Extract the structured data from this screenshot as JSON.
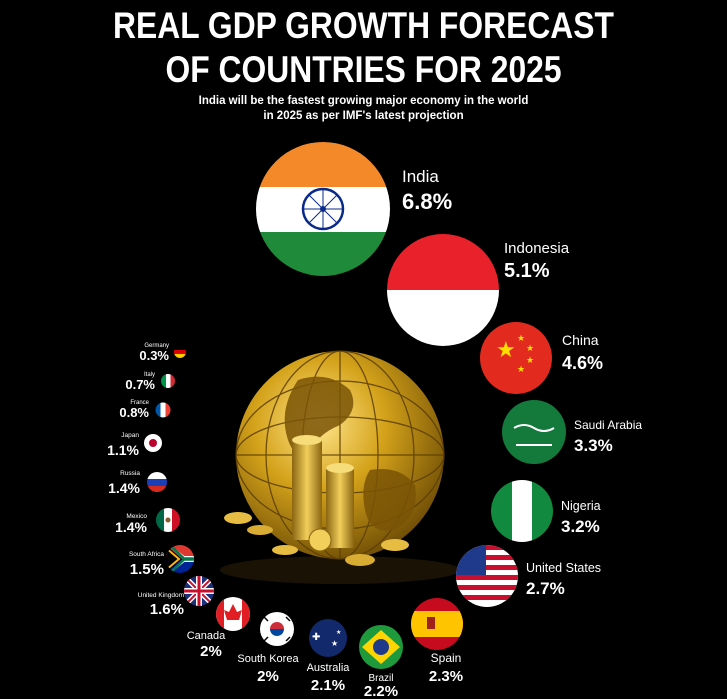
{
  "header": {
    "title_line1": "REAL GDP GROWTH FORECAST",
    "title_line2": "OF COUNTRIES FOR 2025",
    "subtitle_line1": "India will be the fastest growing major economy in the world",
    "subtitle_line2": "in 2025 as per IMF's latest projection"
  },
  "chart_data": {
    "type": "bubble",
    "title": "REAL GDP GROWTH FORECAST OF COUNTRIES FOR 2025",
    "subtitle": "India will be the fastest growing major economy in the world in 2025 as per IMF's latest projection",
    "unit": "%",
    "categories": [
      "India",
      "Indonesia",
      "China",
      "Saudi Arabia",
      "Nigeria",
      "United States",
      "Spain",
      "Brazil",
      "Australia",
      "South Korea",
      "Canada",
      "United Kingdom",
      "South Africa",
      "Mexico",
      "Russia",
      "Japan",
      "France",
      "Italy",
      "Germany"
    ],
    "values": [
      6.8,
      5.1,
      4.6,
      3.3,
      3.2,
      2.7,
      2.3,
      2.2,
      2.1,
      2,
      2,
      1.6,
      1.5,
      1.4,
      1.4,
      1.1,
      0.8,
      0.7,
      0.3
    ],
    "labels": [
      "6.8%",
      "5.1%",
      "4.6%",
      "3.3%",
      "3.2%",
      "2.7%",
      "2.3%",
      "2.2%",
      "2.1%",
      "2%",
      "2%",
      "1.6%",
      "1.5%",
      "1.4%",
      "1.4%",
      "1.1%",
      "0.8%",
      "0.7%",
      "0.3%"
    ],
    "flags": [
      "india-flag",
      "indonesia-flag",
      "china-flag",
      "saudi-arabia-flag",
      "nigeria-flag",
      "united-states-flag",
      "spain-flag",
      "brazil-flag",
      "australia-flag",
      "south-korea-flag",
      "canada-flag",
      "united-kingdom-flag",
      "south-africa-flag",
      "mexico-flag",
      "russia-flag",
      "japan-flag",
      "france-flag",
      "italy-flag",
      "germany-flag"
    ]
  },
  "colors": {
    "background": "#000000",
    "text": "#ffffff",
    "gold": "#d4a21a"
  }
}
